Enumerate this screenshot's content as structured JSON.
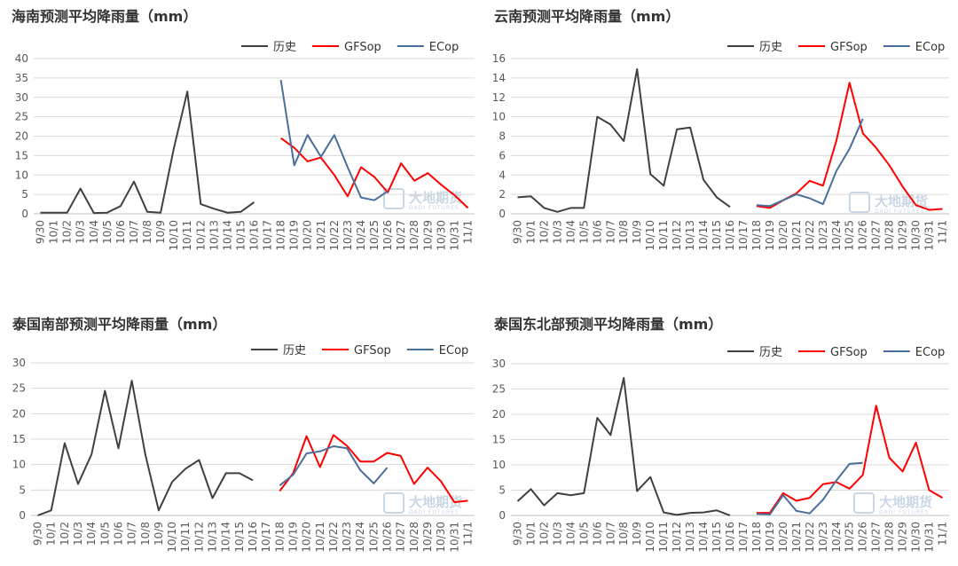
{
  "chart_data": [
    {
      "type": "line",
      "title": "海南预测平均降雨量（mm）",
      "ylim": [
        0,
        40
      ],
      "ystep": 5,
      "grid": true,
      "legend": "top",
      "categories": [
        "9/30",
        "10/1",
        "10/2",
        "10/3",
        "10/4",
        "10/5",
        "10/6",
        "10/7",
        "10/8",
        "10/9",
        "10/10",
        "10/11",
        "10/12",
        "10/13",
        "10/14",
        "10/15",
        "10/16",
        "10/17",
        "10/18",
        "10/19",
        "10/20",
        "10/21",
        "10/22",
        "10/23",
        "10/24",
        "10/25",
        "10/26",
        "10/27",
        "10/28",
        "10/29",
        "10/30",
        "10/31",
        "11/1"
      ],
      "series": [
        {
          "name": "历史",
          "color": "#404040",
          "values": [
            0.3,
            0.3,
            0.3,
            6.5,
            0.2,
            0.3,
            2,
            8.3,
            0.5,
            0.3,
            17,
            31.5,
            2.5,
            1.3,
            0.3,
            0.5,
            3,
            null,
            null,
            null,
            null,
            null,
            null,
            null,
            null,
            null,
            null,
            null,
            null,
            null,
            null,
            null,
            null
          ]
        },
        {
          "name": "GFSop",
          "color": "#ff0000",
          "values": [
            null,
            null,
            null,
            null,
            null,
            null,
            null,
            null,
            null,
            null,
            null,
            null,
            null,
            null,
            null,
            null,
            null,
            null,
            19.5,
            17,
            13.5,
            14.5,
            10,
            4.5,
            12,
            9.5,
            5.5,
            13,
            8.5,
            10.5,
            7.5,
            4.8,
            1.5
          ]
        },
        {
          "name": "ECop",
          "color": "#4a6f9a",
          "values": [
            null,
            null,
            null,
            null,
            null,
            null,
            null,
            null,
            null,
            null,
            null,
            null,
            null,
            null,
            null,
            null,
            null,
            null,
            34.5,
            12.5,
            20.3,
            14.7,
            20.3,
            12,
            4.2,
            3.5,
            5.8,
            null,
            null,
            null,
            null,
            null,
            null
          ]
        }
      ]
    },
    {
      "type": "line",
      "title": "云南预测平均降雨量（mm）",
      "ylim": [
        0,
        16
      ],
      "ystep": 2,
      "grid": true,
      "legend": "top",
      "categories": [
        "9/30",
        "10/1",
        "10/2",
        "10/3",
        "10/4",
        "10/5",
        "10/6",
        "10/7",
        "10/8",
        "10/9",
        "10/10",
        "10/11",
        "10/12",
        "10/13",
        "10/14",
        "10/15",
        "10/16",
        "10/17",
        "10/18",
        "10/19",
        "10/20",
        "10/21",
        "10/22",
        "10/23",
        "10/24",
        "10/25",
        "10/26",
        "10/27",
        "10/28",
        "10/29",
        "10/30",
        "10/31",
        "11/1"
      ],
      "series": [
        {
          "name": "历史",
          "color": "#404040",
          "values": [
            1.7,
            1.8,
            0.6,
            0.2,
            0.6,
            0.6,
            10,
            9.2,
            7.5,
            14.9,
            4.1,
            2.9,
            8.7,
            8.9,
            3.5,
            1.7,
            0.7,
            null,
            null,
            null,
            null,
            null,
            null,
            null,
            null,
            null,
            null,
            null,
            null,
            null,
            null,
            null,
            null
          ]
        },
        {
          "name": "GFSop",
          "color": "#ff0000",
          "values": [
            null,
            null,
            null,
            null,
            null,
            null,
            null,
            null,
            null,
            null,
            null,
            null,
            null,
            null,
            null,
            null,
            null,
            null,
            0.8,
            0.6,
            1.4,
            2.1,
            3.4,
            2.9,
            7.5,
            13.5,
            8.3,
            6.8,
            5,
            2.8,
            0.9,
            0.4,
            0.5
          ]
        },
        {
          "name": "ECop",
          "color": "#4a6f9a",
          "values": [
            null,
            null,
            null,
            null,
            null,
            null,
            null,
            null,
            null,
            null,
            null,
            null,
            null,
            null,
            null,
            null,
            null,
            null,
            0.9,
            0.8,
            1.4,
            2,
            1.6,
            1,
            4.4,
            6.7,
            9.8,
            null,
            null,
            null,
            null,
            null,
            null
          ]
        }
      ]
    },
    {
      "type": "line",
      "title": "泰国南部预测平均降雨量（mm）",
      "ylim": [
        0,
        30
      ],
      "ystep": 5,
      "grid": true,
      "legend": "top",
      "categories": [
        "9/30",
        "10/1",
        "10/2",
        "10/3",
        "10/4",
        "10/5",
        "10/6",
        "10/7",
        "10/8",
        "10/9",
        "10/10",
        "10/11",
        "10/12",
        "10/13",
        "10/14",
        "10/15",
        "10/16",
        "10/17",
        "10/18",
        "10/19",
        "10/20",
        "10/21",
        "10/22",
        "10/23",
        "10/24",
        "10/25",
        "10/26",
        "10/27",
        "10/28",
        "10/29",
        "10/30",
        "10/31",
        "11/1"
      ],
      "series": [
        {
          "name": "历史",
          "color": "#404040",
          "values": [
            0,
            1,
            14.2,
            6.2,
            12,
            24.5,
            13.2,
            26.5,
            12,
            1,
            6.6,
            9.2,
            10.9,
            3.4,
            8.3,
            8.3,
            6.9,
            null,
            null,
            null,
            null,
            null,
            null,
            null,
            null,
            null,
            null,
            null,
            null,
            null,
            null,
            null,
            null
          ]
        },
        {
          "name": "GFSop",
          "color": "#ff0000",
          "values": [
            null,
            null,
            null,
            null,
            null,
            null,
            null,
            null,
            null,
            null,
            null,
            null,
            null,
            null,
            null,
            null,
            null,
            null,
            4.8,
            8.3,
            15.6,
            9.5,
            15.8,
            13.7,
            10.6,
            10.6,
            12.3,
            11.7,
            6.2,
            9.4,
            6.7,
            2.6,
            2.9
          ]
        },
        {
          "name": "ECop",
          "color": "#4a6f9a",
          "values": [
            null,
            null,
            null,
            null,
            null,
            null,
            null,
            null,
            null,
            null,
            null,
            null,
            null,
            null,
            null,
            null,
            null,
            null,
            5.9,
            8,
            12.2,
            12.6,
            13.6,
            13.2,
            8.9,
            6.3,
            9.4,
            null,
            null,
            null,
            null,
            null,
            null
          ]
        }
      ]
    },
    {
      "type": "line",
      "title": "泰国东北部预测平均降雨量（mm）",
      "ylim": [
        0,
        30
      ],
      "ystep": 5,
      "grid": true,
      "legend": "top",
      "categories": [
        "9/30",
        "10/1",
        "10/2",
        "10/3",
        "10/4",
        "10/5",
        "10/6",
        "10/7",
        "10/8",
        "10/9",
        "10/10",
        "10/11",
        "10/12",
        "10/13",
        "10/14",
        "10/15",
        "10/16",
        "10/17",
        "10/18",
        "10/19",
        "10/20",
        "10/21",
        "10/22",
        "10/23",
        "10/24",
        "10/25",
        "10/26",
        "10/27",
        "10/28",
        "10/29",
        "10/30",
        "10/31",
        "11/1"
      ],
      "series": [
        {
          "name": "历史",
          "color": "#404040",
          "values": [
            2.8,
            5.2,
            2,
            4.4,
            4,
            4.4,
            19.3,
            15.9,
            27.2,
            4.8,
            7.6,
            0.6,
            0.1,
            0.5,
            0.6,
            1,
            0,
            null,
            null,
            null,
            null,
            null,
            null,
            null,
            null,
            null,
            null,
            null,
            null,
            null,
            null,
            null,
            null
          ]
        },
        {
          "name": "GFSop",
          "color": "#ff0000",
          "values": [
            null,
            null,
            null,
            null,
            null,
            null,
            null,
            null,
            null,
            null,
            null,
            null,
            null,
            null,
            null,
            null,
            null,
            null,
            0.5,
            0.5,
            4.4,
            2.9,
            3.5,
            6.2,
            6.6,
            5.3,
            8,
            21.7,
            11.4,
            8.7,
            14.4,
            5,
            3.5
          ]
        },
        {
          "name": "ECop",
          "color": "#4a6f9a",
          "values": [
            null,
            null,
            null,
            null,
            null,
            null,
            null,
            null,
            null,
            null,
            null,
            null,
            null,
            null,
            null,
            null,
            null,
            null,
            0.3,
            0.2,
            4,
            0.9,
            0.4,
            3.1,
            6.9,
            10.2,
            10.4,
            null,
            null,
            null,
            null,
            null,
            null
          ]
        }
      ]
    }
  ],
  "watermark": {
    "main": "大地期货",
    "sub": "DADI FUTURES"
  }
}
